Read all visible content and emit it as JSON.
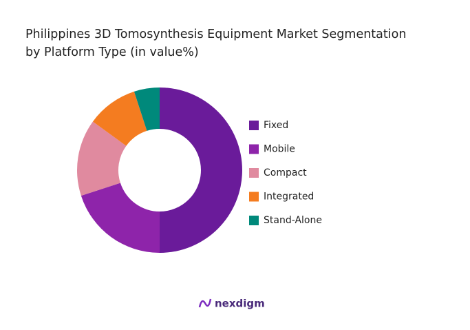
{
  "chart_data": {
    "type": "donut",
    "title": [
      "Philippines 3D Tomosynthesis Equipment Market Segmentation",
      "by Platform Type (in value%)"
    ],
    "categories": [
      "Fixed",
      "Mobile",
      "Compact",
      "Integrated",
      "Stand-Alone"
    ],
    "values": [
      50,
      20,
      15,
      10,
      5
    ],
    "colors": [
      "#6a1b9a",
      "#8e24aa",
      "#e08a9f",
      "#f47c20",
      "#00897b"
    ],
    "legend": "right"
  },
  "brand": "nexdigm"
}
